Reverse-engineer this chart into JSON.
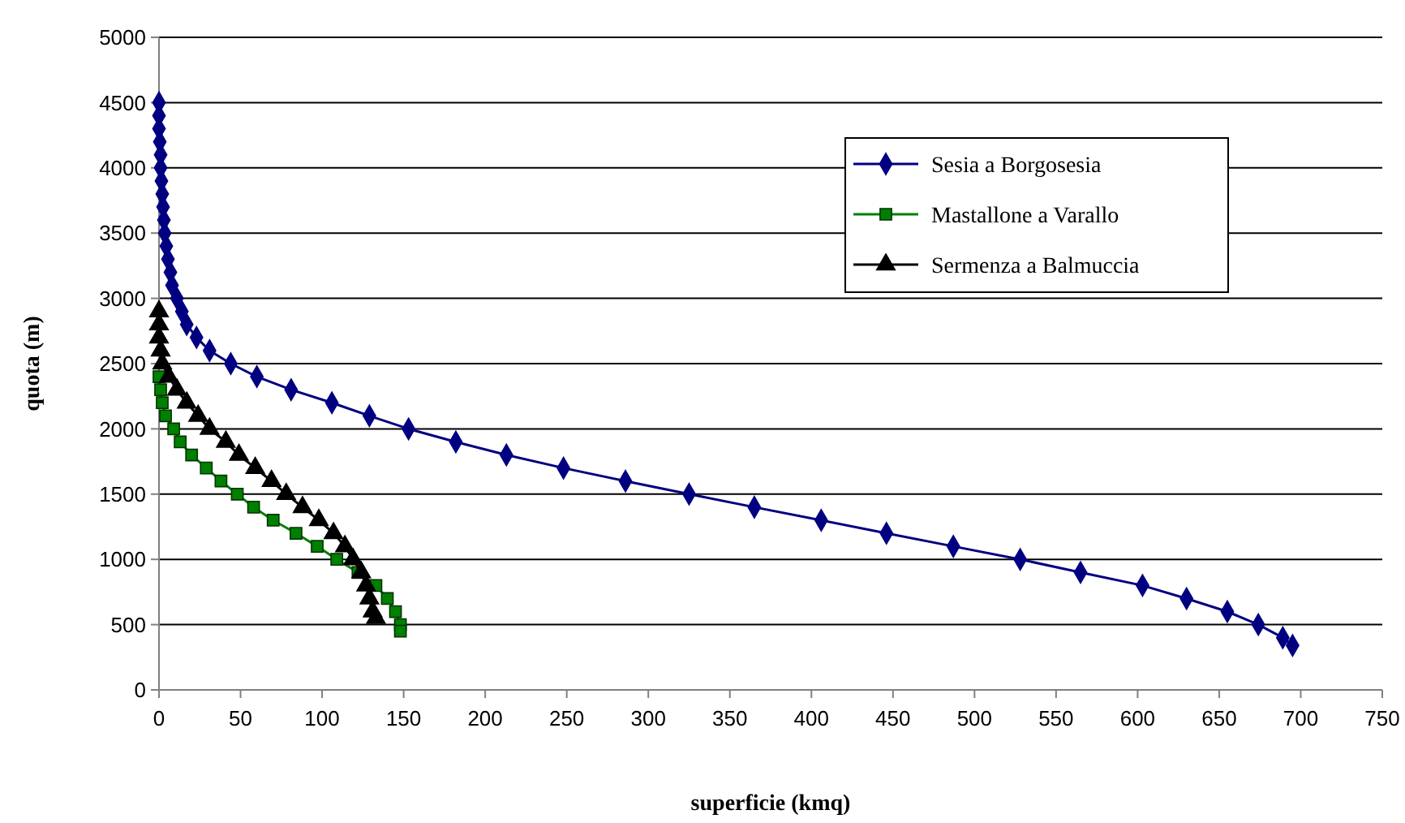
{
  "chart_data": {
    "type": "line",
    "xlabel": "superficie (kmq)",
    "ylabel": "quota (m)",
    "xlim": [
      0,
      750
    ],
    "xticks": [
      0,
      50,
      100,
      150,
      200,
      250,
      300,
      350,
      400,
      450,
      500,
      550,
      600,
      650,
      700,
      750
    ],
    "ylim": [
      0,
      5000
    ],
    "yticks": [
      0,
      500,
      1000,
      1500,
      2000,
      2500,
      3000,
      3500,
      4000,
      4500,
      5000
    ],
    "grid": "y",
    "legend": "top right",
    "line_style": "solid",
    "series": [
      {
        "name": "Sesia a Borgosesia",
        "color": "#000080",
        "marker": "diamond",
        "x": [
          0,
          0,
          0,
          0.5,
          1,
          1,
          1.5,
          2,
          2.5,
          3,
          3.5,
          4.5,
          5.5,
          7,
          8,
          11,
          14,
          17,
          23,
          31,
          44,
          60,
          81,
          106,
          129,
          153,
          182,
          213,
          248,
          286,
          325,
          365,
          406,
          446,
          487,
          528,
          565,
          603,
          630,
          655,
          674,
          689,
          695
        ],
        "values": [
          4500,
          4400,
          4300,
          4200,
          4100,
          4000,
          3900,
          3800,
          3700,
          3600,
          3500,
          3400,
          3300,
          3200,
          3100,
          3000,
          2900,
          2800,
          2700,
          2600,
          2500,
          2400,
          2300,
          2200,
          2100,
          2000,
          1900,
          1800,
          1700,
          1600,
          1500,
          1400,
          1300,
          1200,
          1100,
          1000,
          900,
          800,
          700,
          600,
          500,
          400,
          340
        ]
      },
      {
        "name": "Mastallone a Varallo",
        "color": "#008000",
        "marker": "square",
        "x": [
          0,
          1,
          2,
          4,
          9,
          13,
          20,
          29,
          38,
          48,
          58,
          70,
          84,
          97,
          109,
          122,
          133,
          140,
          145,
          148,
          148
        ],
        "values": [
          2400,
          2300,
          2200,
          2100,
          2000,
          1900,
          1800,
          1700,
          1600,
          1500,
          1400,
          1300,
          1200,
          1100,
          1000,
          900,
          800,
          700,
          600,
          500,
          450
        ]
      },
      {
        "name": "Sermenza a Balmuccia",
        "color": "#000000",
        "marker": "triangle",
        "x": [
          0,
          0,
          0,
          1,
          2,
          6,
          11,
          17,
          24,
          31,
          41,
          49,
          59,
          69,
          78,
          88,
          98,
          107,
          114,
          119,
          124,
          127,
          129,
          131,
          133
        ],
        "values": [
          2900,
          2800,
          2700,
          2600,
          2500,
          2400,
          2300,
          2200,
          2100,
          2000,
          1900,
          1800,
          1700,
          1600,
          1500,
          1400,
          1300,
          1200,
          1100,
          1000,
          900,
          800,
          700,
          600,
          550
        ]
      }
    ]
  }
}
